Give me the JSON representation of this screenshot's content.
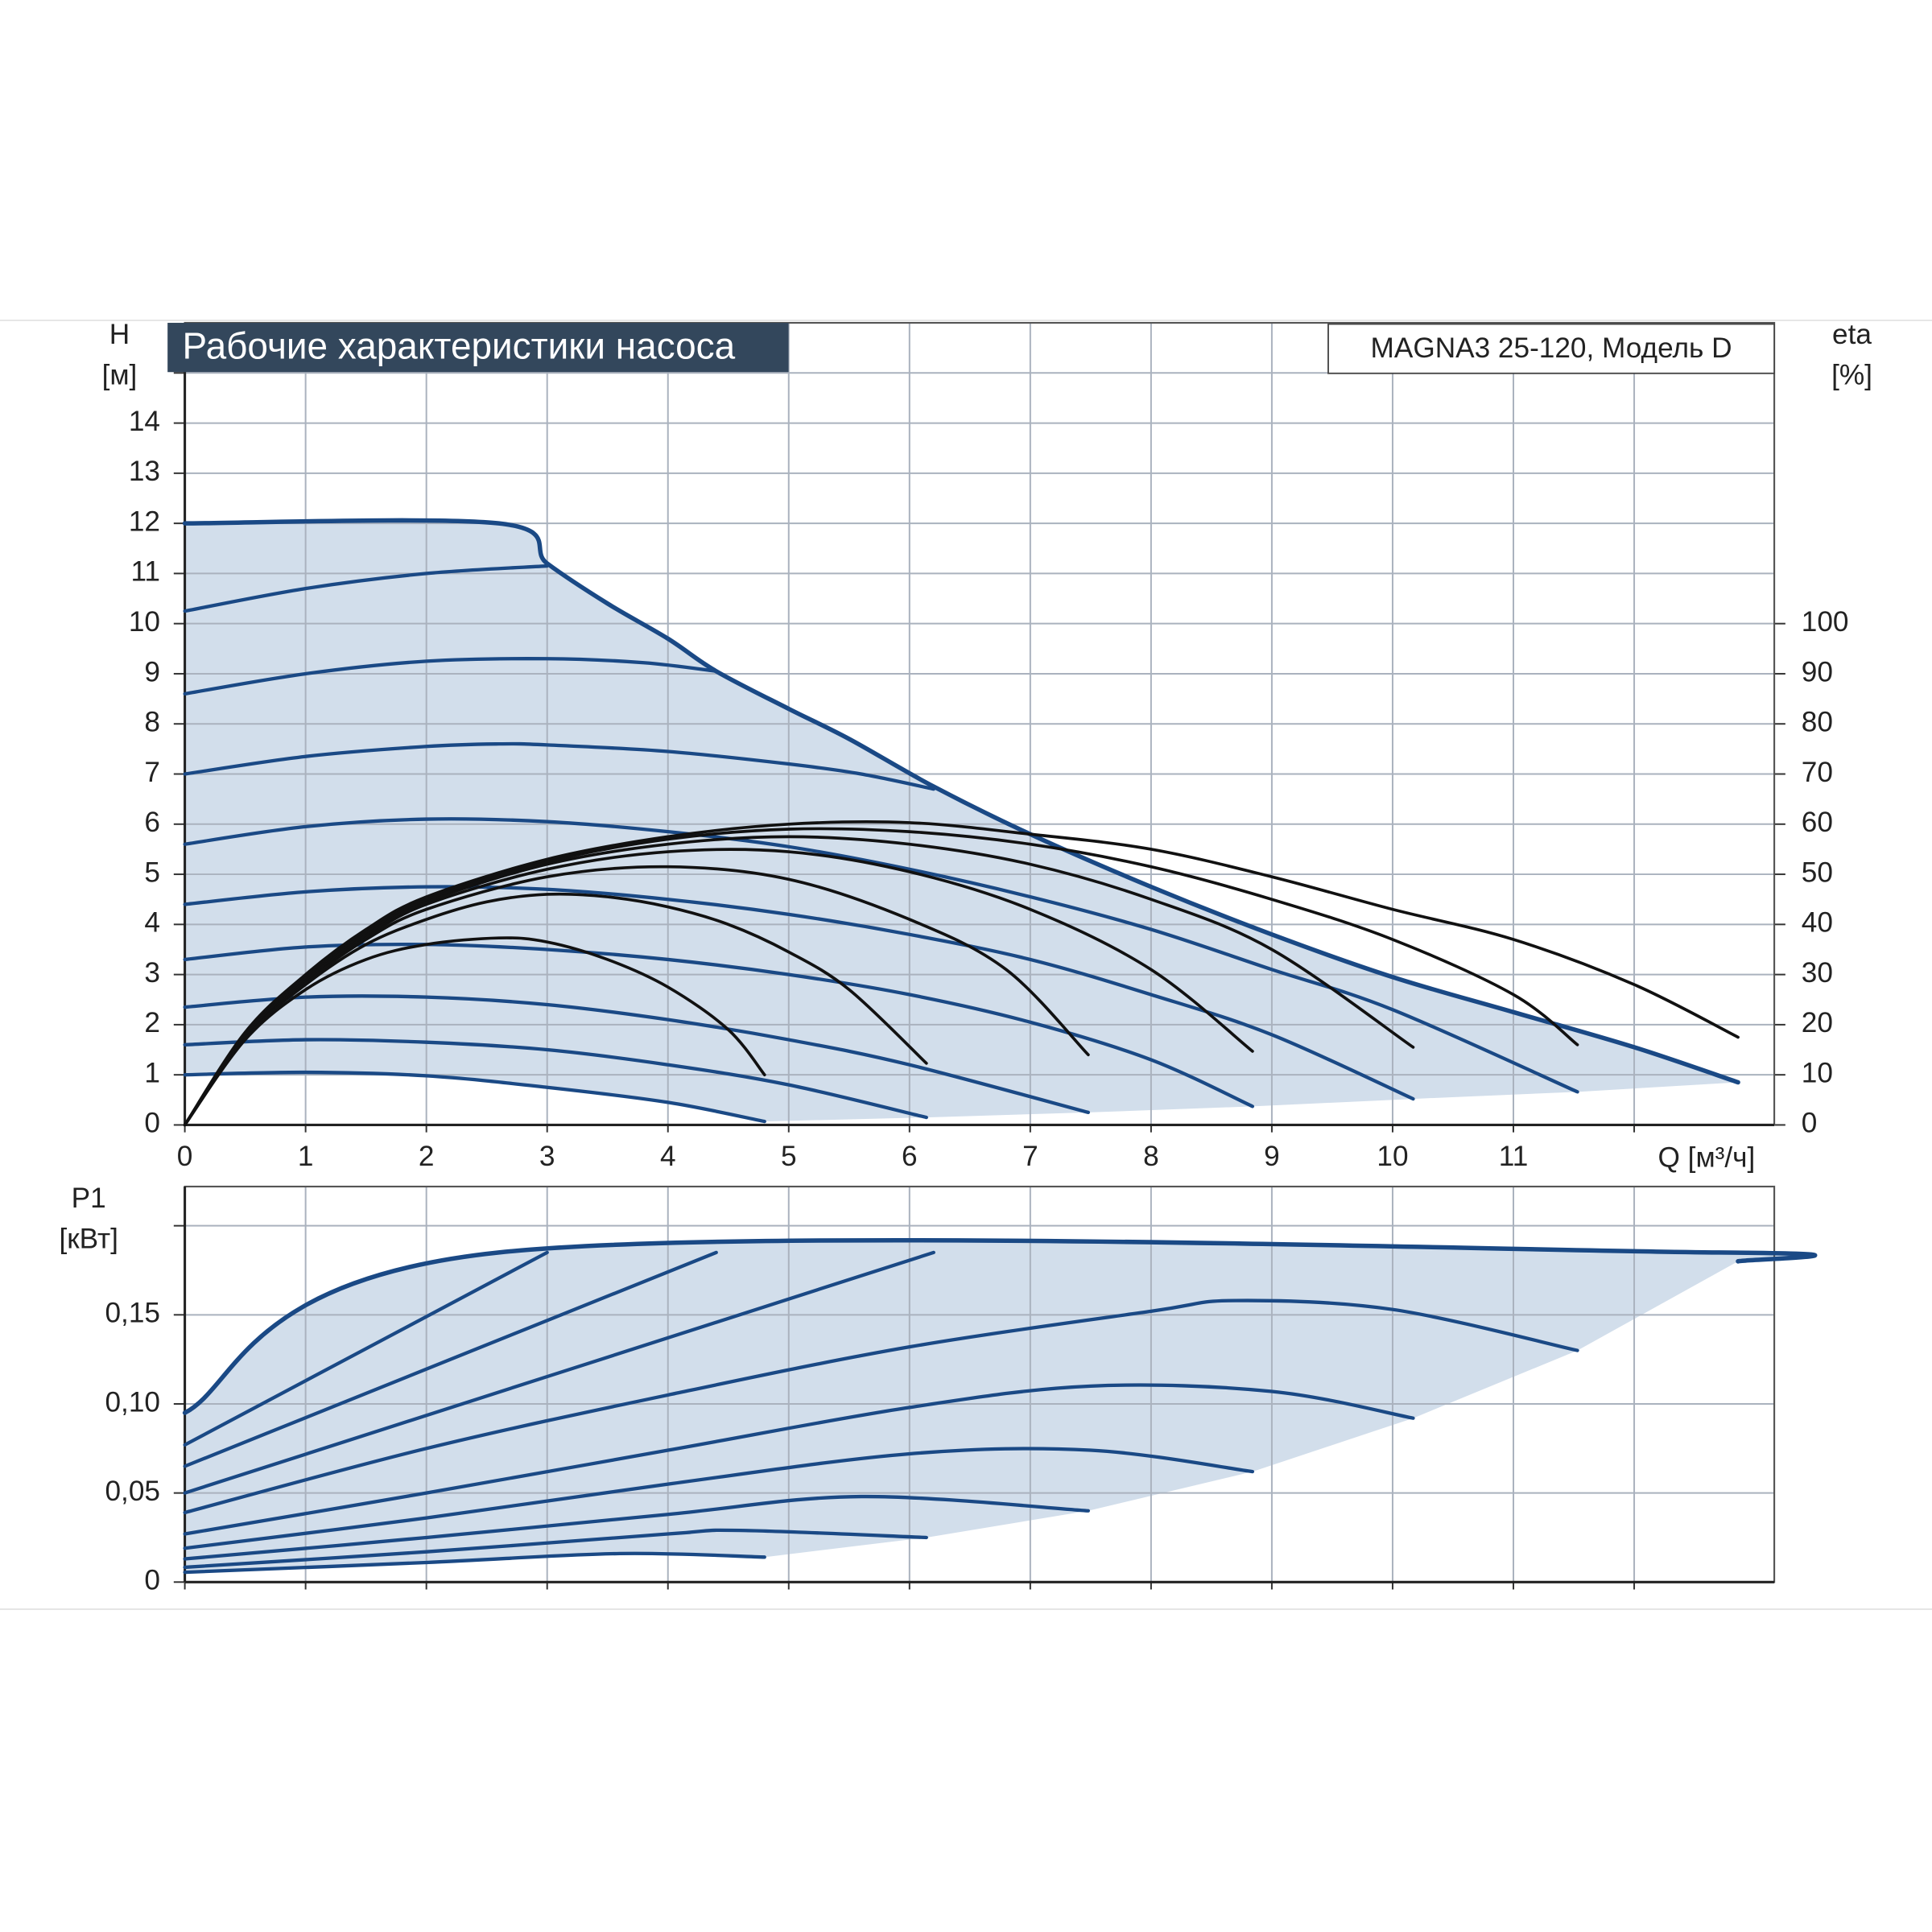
{
  "chart_data": [
    {
      "type": "line",
      "title": "Рабочие характеристики насоса",
      "model": "MAGNA3 25-120, Модель D",
      "xlabel": "Q [м³/ч]",
      "ylabel": "H",
      "yunit": "[м]",
      "y2label": "eta",
      "y2unit": "[%]",
      "xlim": [
        0,
        13.16
      ],
      "xticks": [
        0,
        1,
        2,
        3,
        4,
        5,
        6,
        7,
        8,
        9,
        10,
        11,
        {
          "value": 12,
          "label": null
        }
      ],
      "ylim": [
        0,
        16
      ],
      "yticks": [
        0,
        1,
        2,
        3,
        4,
        5,
        6,
        7,
        8,
        9,
        10,
        11,
        12,
        13,
        14,
        {
          "value": 15,
          "label": null
        }
      ],
      "y2lim": [
        0,
        160
      ],
      "y2ticks": [
        0,
        10,
        20,
        30,
        40,
        50,
        60,
        70,
        80,
        90,
        100
      ],
      "grid": true,
      "area_color": "#d2deeb",
      "series": [
        {
          "color": "#1a4985",
          "envelope": true,
          "x": [
            0,
            2.6,
            3,
            3.5,
            4,
            4.4,
            5,
            5.5,
            6.2,
            7,
            8,
            9,
            10,
            11,
            12,
            12.86
          ],
          "values": [
            12,
            12,
            11.2,
            10.4,
            9.7,
            9.05,
            8.3,
            7.7,
            6.75,
            5.8,
            4.75,
            3.8,
            2.95,
            2.25,
            1.55,
            0.85
          ]
        },
        {
          "color": "#1a4985",
          "x": [
            0,
            1,
            2,
            3
          ],
          "values": [
            10.25,
            10.7,
            11.0,
            11.15
          ]
        },
        {
          "color": "#1a4985",
          "x": [
            0,
            1,
            2,
            3,
            3.8,
            4.4
          ],
          "values": [
            8.6,
            9.0,
            9.25,
            9.3,
            9.22,
            9.05
          ]
        },
        {
          "color": "#1a4985",
          "x": [
            0,
            1,
            2,
            2.6,
            3,
            4,
            5,
            5.6,
            6.2
          ],
          "values": [
            7.0,
            7.35,
            7.55,
            7.6,
            7.58,
            7.45,
            7.2,
            7.0,
            6.7
          ]
        },
        {
          "color": "#1a4985",
          "x": [
            0,
            1,
            2,
            3,
            4,
            5,
            6,
            7,
            8,
            9,
            10,
            11.53
          ],
          "values": [
            5.6,
            5.95,
            6.1,
            6.05,
            5.85,
            5.55,
            5.1,
            4.55,
            3.9,
            3.1,
            2.3,
            0.66
          ]
        },
        {
          "color": "#1a4985",
          "x": [
            0,
            1,
            2,
            3,
            4,
            5,
            6,
            7,
            8,
            9,
            10.17
          ],
          "values": [
            4.4,
            4.65,
            4.75,
            4.7,
            4.5,
            4.2,
            3.8,
            3.3,
            2.6,
            1.8,
            0.52
          ]
        },
        {
          "color": "#1a4985",
          "x": [
            0,
            1,
            2,
            3,
            4,
            5,
            6,
            7,
            8,
            8.84
          ],
          "values": [
            3.3,
            3.55,
            3.6,
            3.5,
            3.3,
            3.0,
            2.6,
            2.05,
            1.3,
            0.37
          ]
        },
        {
          "color": "#1a4985",
          "x": [
            0,
            1,
            2,
            3,
            4,
            5,
            6,
            7.48
          ],
          "values": [
            2.35,
            2.55,
            2.55,
            2.4,
            2.1,
            1.7,
            1.2,
            0.25
          ]
        },
        {
          "color": "#1a4985",
          "x": [
            0,
            1,
            2,
            3,
            4,
            5,
            6.14
          ],
          "values": [
            1.6,
            1.7,
            1.65,
            1.5,
            1.2,
            0.8,
            0.15
          ]
        },
        {
          "color": "#1a4985",
          "x": [
            0,
            1,
            2,
            3,
            4,
            4.8
          ],
          "values": [
            1.0,
            1.05,
            0.98,
            0.75,
            0.45,
            0.07
          ]
        },
        {
          "color": "#111111",
          "axis": "y2",
          "x": [
            0,
            0.5,
            1,
            1.5,
            2,
            2.6,
            3,
            3.5,
            4,
            4.5,
            4.8
          ],
          "values": [
            0,
            17,
            27,
            33,
            36,
            37.3,
            36.5,
            33,
            27.5,
            19,
            10
          ]
        },
        {
          "color": "#111111",
          "axis": "y2",
          "x": [
            0,
            0.5,
            1,
            1.5,
            2,
            2.5,
            3,
            3.5,
            4,
            4.5,
            5,
            5.5,
            6.14
          ],
          "values": [
            0,
            17.5,
            28,
            36,
            41,
            44.5,
            46,
            45.5,
            43.5,
            40,
            34.5,
            27,
            12.3
          ]
        },
        {
          "color": "#111111",
          "axis": "y2",
          "x": [
            0,
            0.5,
            1,
            1.5,
            2,
            3,
            4,
            5,
            6,
            6.8,
            7.48
          ],
          "values": [
            0,
            18,
            28.5,
            37,
            43,
            49.5,
            51.5,
            49,
            41,
            31,
            14
          ]
        },
        {
          "color": "#111111",
          "axis": "y2",
          "x": [
            0,
            0.5,
            1,
            1.5,
            2,
            3,
            4,
            5,
            6,
            7,
            8,
            8.84
          ],
          "values": [
            0,
            18,
            29,
            37.5,
            44,
            51,
            54.5,
            54.5,
            50.5,
            43,
            31,
            14.7
          ]
        },
        {
          "color": "#111111",
          "axis": "y2",
          "x": [
            0,
            0.5,
            1,
            1.5,
            2,
            3,
            4,
            5,
            6,
            7,
            8,
            9,
            10.17
          ],
          "values": [
            0,
            18,
            29,
            38,
            44.5,
            52,
            56,
            57.5,
            56,
            52,
            45,
            35,
            15.5
          ]
        },
        {
          "color": "#111111",
          "axis": "y2",
          "x": [
            0,
            0.5,
            1,
            1.5,
            2,
            3,
            4,
            5,
            6,
            7,
            8,
            9,
            10,
            11,
            11.53
          ],
          "values": [
            0,
            18,
            29.5,
            38.5,
            45,
            52.5,
            57,
            59,
            58.5,
            56,
            51.5,
            45,
            37,
            26,
            16
          ]
        },
        {
          "color": "#111111",
          "axis": "y2",
          "x": [
            0,
            0.5,
            1,
            1.5,
            2,
            3,
            4,
            5,
            6,
            7,
            8,
            9,
            10,
            11,
            12,
            12.86
          ],
          "values": [
            0,
            18.5,
            30,
            39,
            45.5,
            53,
            57.5,
            60,
            60.3,
            58,
            55,
            49.5,
            43,
            37,
            28,
            17.5
          ]
        }
      ]
    },
    {
      "type": "line",
      "ylabel": "P1",
      "yunit": "[кВт]",
      "xlim": [
        0,
        13.16
      ],
      "xticks": [
        {
          "value": 0,
          "label": null
        },
        {
          "value": 1,
          "label": null
        },
        {
          "value": 2,
          "label": null
        },
        {
          "value": 3,
          "label": null
        },
        {
          "value": 4,
          "label": null
        },
        {
          "value": 5,
          "label": null
        },
        {
          "value": 6,
          "label": null
        },
        {
          "value": 7,
          "label": null
        },
        {
          "value": 8,
          "label": null
        },
        {
          "value": 9,
          "label": null
        },
        {
          "value": 10,
          "label": null
        },
        {
          "value": 11,
          "label": null
        },
        {
          "value": 12,
          "label": null
        }
      ],
      "ylim": [
        0,
        0.222
      ],
      "yticks": [
        0,
        {
          "value": 0.05,
          "label": "0,05"
        },
        {
          "value": 0.1,
          "label": "0,10"
        },
        {
          "value": 0.15,
          "label": "0,15"
        },
        {
          "value": 0.2,
          "label": null
        }
      ],
      "grid": true,
      "area_color": "#d2deeb",
      "series": [
        {
          "color": "#1a4985",
          "envelope": true,
          "x": [
            0,
            2.6,
            12.7,
            12.86
          ],
          "values": [
            0.095,
            0.185,
            0.185,
            0.18
          ]
        },
        {
          "color": "#1a4985",
          "x": [
            0,
            3
          ],
          "values": [
            0.077,
            0.185
          ]
        },
        {
          "color": "#1a4985",
          "x": [
            0,
            4.4
          ],
          "values": [
            0.065,
            0.185
          ]
        },
        {
          "color": "#1a4985",
          "x": [
            0,
            6.2
          ],
          "values": [
            0.05,
            0.185
          ]
        },
        {
          "color": "#1a4985",
          "x": [
            0,
            2,
            4,
            6,
            8,
            8.7,
            10,
            11.53
          ],
          "values": [
            0.039,
            0.075,
            0.105,
            0.132,
            0.152,
            0.158,
            0.153,
            0.13
          ]
        },
        {
          "color": "#1a4985",
          "x": [
            0,
            2,
            4,
            6,
            7.5,
            9,
            10.17
          ],
          "values": [
            0.027,
            0.05,
            0.074,
            0.098,
            0.11,
            0.107,
            0.092
          ]
        },
        {
          "color": "#1a4985",
          "x": [
            0,
            2,
            4,
            6,
            7.5,
            8.84
          ],
          "values": [
            0.019,
            0.036,
            0.055,
            0.072,
            0.074,
            0.062
          ]
        },
        {
          "color": "#1a4985",
          "x": [
            0,
            2,
            4,
            5.6,
            7.48
          ],
          "values": [
            0.013,
            0.025,
            0.038,
            0.048,
            0.04
          ]
        },
        {
          "color": "#1a4985",
          "x": [
            0,
            2,
            4,
            4.6,
            6.14
          ],
          "values": [
            0.0083,
            0.017,
            0.027,
            0.029,
            0.025
          ]
        },
        {
          "color": "#1a4985",
          "x": [
            0,
            2,
            3.6,
            4.8
          ],
          "values": [
            0.0055,
            0.011,
            0.016,
            0.014
          ]
        }
      ]
    }
  ]
}
